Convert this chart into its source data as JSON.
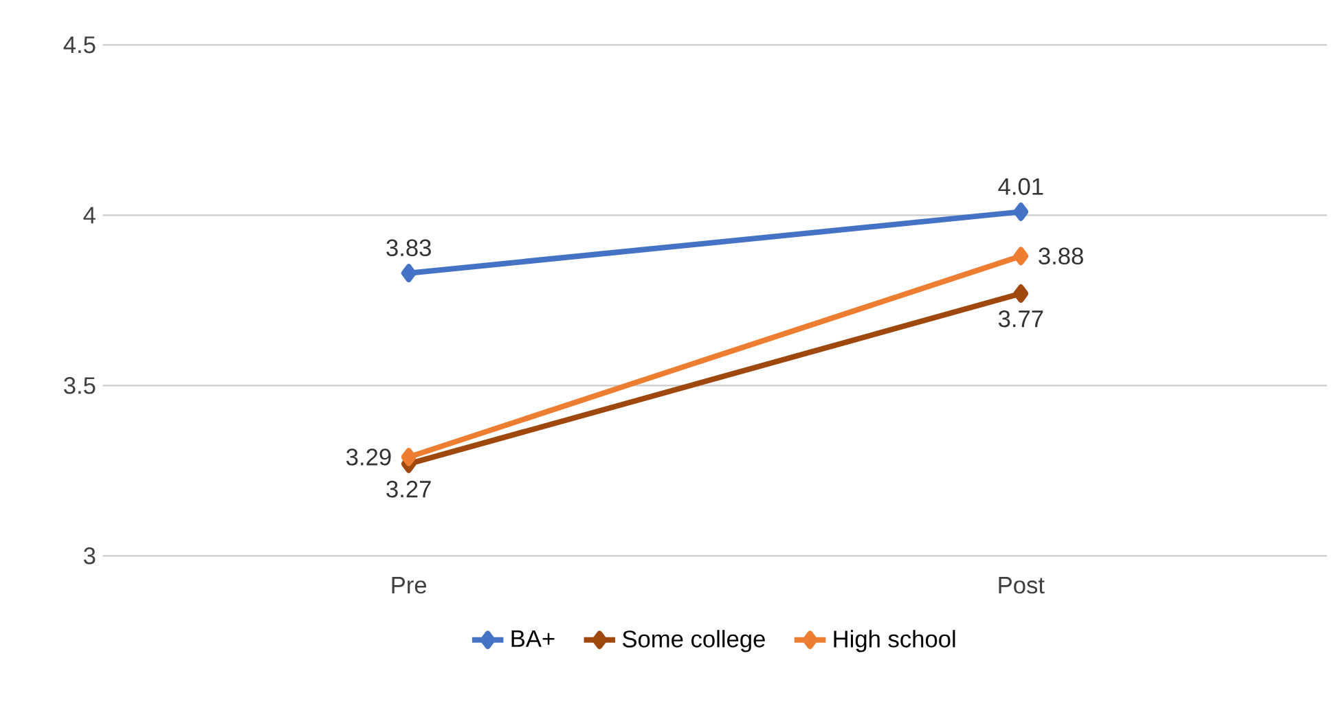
{
  "chart_data": {
    "type": "line",
    "categories": [
      "Pre",
      "Post"
    ],
    "series": [
      {
        "name": "BA+",
        "color": "#4472c4",
        "values": [
          3.83,
          4.01
        ]
      },
      {
        "name": "Some college",
        "color": "#9e480e",
        "values": [
          3.27,
          3.77
        ]
      },
      {
        "name": "High school",
        "color": "#ed7d31",
        "values": [
          3.29,
          3.88
        ]
      }
    ],
    "ylim": [
      3,
      4.5
    ],
    "yticks": [
      3,
      3.5,
      4,
      4.5
    ],
    "grid": "y",
    "legend": "bottom",
    "marker": "diamond",
    "line_style": "solid",
    "data_labels": true
  }
}
